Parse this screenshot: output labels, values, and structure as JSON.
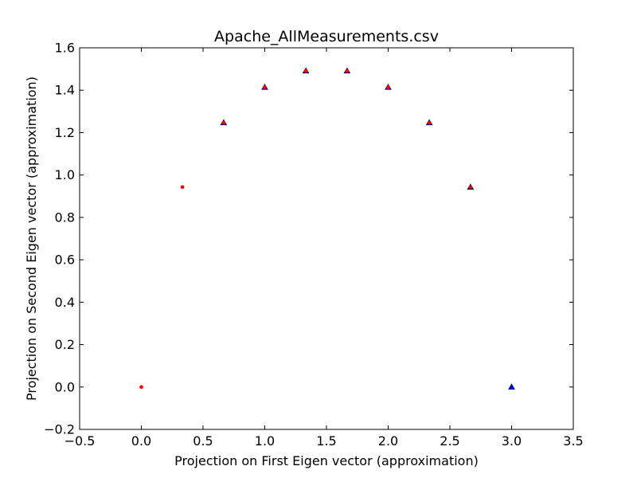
{
  "chart_data": {
    "type": "scatter",
    "title": "Apache_AllMeasurements.csv",
    "xlabel": "Projection on First Eigen vector (approximation)",
    "ylabel": "Projection on Second Eigen vector (approximation)",
    "xlim": [
      -0.5,
      3.5
    ],
    "ylim": [
      -0.2,
      1.6
    ],
    "xticks": [
      -0.5,
      0.0,
      0.5,
      1.0,
      1.5,
      2.0,
      2.5,
      3.0,
      3.5
    ],
    "xtick_labels": [
      "−0.5",
      "0.0",
      "0.5",
      "1.0",
      "1.5",
      "2.0",
      "2.5",
      "3.0",
      "3.5"
    ],
    "yticks": [
      -0.2,
      0.0,
      0.2,
      0.4,
      0.6,
      0.8,
      1.0,
      1.2,
      1.4,
      1.6
    ],
    "ytick_labels": [
      "−0.2",
      "0.0",
      "0.2",
      "0.4",
      "0.6",
      "0.8",
      "1.0",
      "1.2",
      "1.4",
      "1.6"
    ],
    "grid": false,
    "legend": "none",
    "series": [
      {
        "marker": "triangle",
        "color": "#0000ff",
        "x": [
          0.667,
          1.0,
          1.333,
          1.667,
          2.0,
          2.333,
          2.667,
          3.0
        ],
        "y": [
          1.247,
          1.414,
          1.491,
          1.491,
          1.414,
          1.247,
          0.943,
          0.0
        ]
      },
      {
        "marker": "dot",
        "color": "#ff0000",
        "x": [
          0.0,
          0.333,
          0.667,
          1.0,
          1.333,
          1.667,
          2.0,
          2.333,
          2.667
        ],
        "y": [
          0.0,
          0.943,
          1.247,
          1.414,
          1.491,
          1.491,
          1.414,
          1.247,
          0.943
        ]
      }
    ]
  }
}
